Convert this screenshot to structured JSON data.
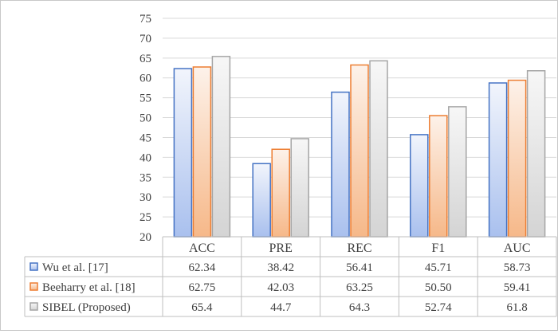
{
  "chart_data": {
    "type": "bar",
    "title": "",
    "xlabel": "",
    "ylabel": "",
    "categories": [
      "ACC",
      "PRE",
      "REC",
      "F1",
      "AUC"
    ],
    "ylim": [
      20,
      75
    ],
    "yticks": [
      20,
      25,
      30,
      35,
      40,
      45,
      50,
      55,
      60,
      65,
      70,
      75
    ],
    "grid": true,
    "legend_placement": "bottom data table",
    "series": [
      {
        "name": "Wu et al. [17]",
        "values_text": [
          "62.34",
          "38.42",
          "56.41",
          "45.71",
          "58.73"
        ],
        "values": [
          62.34,
          38.42,
          56.41,
          45.71,
          58.73
        ],
        "color": "#4472c4",
        "fill_light": "#f2f5fc",
        "fill_dark": "#a9c0ee"
      },
      {
        "name": "Beeharry et al. [18]",
        "values_text": [
          "62.75",
          "42.03",
          "63.25",
          "50.50",
          "59.41"
        ],
        "values": [
          62.75,
          42.03,
          63.25,
          50.5,
          59.41
        ],
        "color": "#ed7d31",
        "fill_light": "#fdf2ea",
        "fill_dark": "#f6b889"
      },
      {
        "name": "SIBEL (Proposed)",
        "values_text": [
          "65.4",
          "44.7",
          "64.3",
          "52.74",
          "61.8"
        ],
        "values": [
          65.4,
          44.7,
          64.3,
          52.74,
          61.8
        ],
        "color": "#a5a5a5",
        "fill_light": "#f7f7f7",
        "fill_dark": "#d4d4d4"
      }
    ]
  }
}
